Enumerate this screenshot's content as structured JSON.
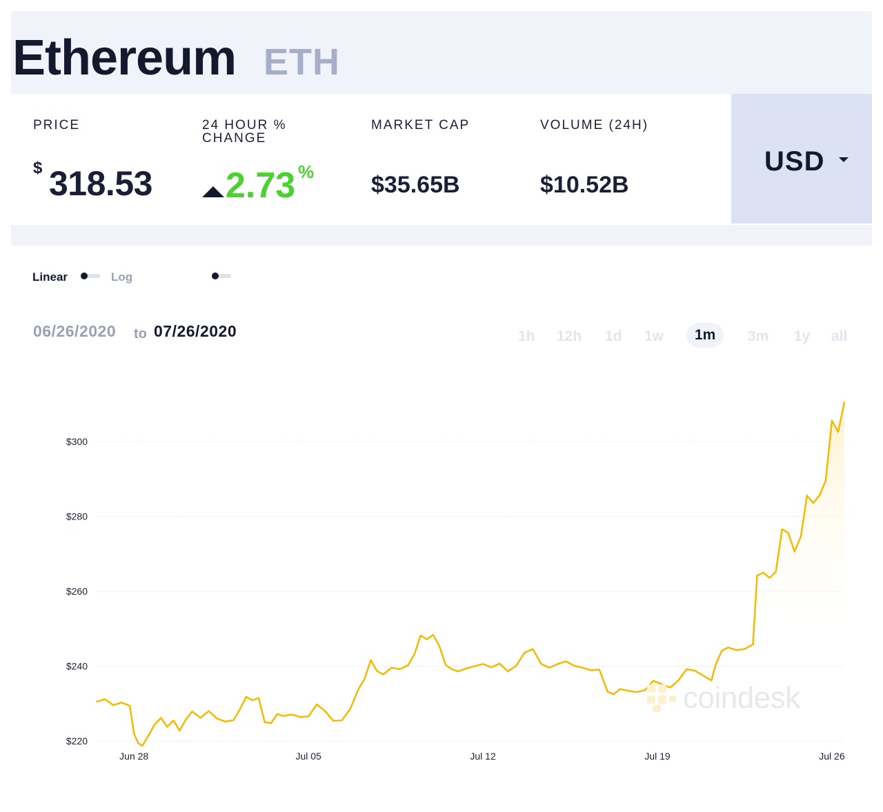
{
  "header": {
    "coin_name": "Ethereum",
    "coin_symbol": "ETH"
  },
  "stats": {
    "price": {
      "label": "PRICE",
      "currency_symbol": "$",
      "value": "318.53"
    },
    "change": {
      "label_line1": "24 HOUR %",
      "label_line2": "CHANGE",
      "value": "2.73",
      "unit": "%",
      "direction": "up",
      "color": "#4cd132"
    },
    "market_cap": {
      "label": "MARKET CAP",
      "value": "$35.65B"
    },
    "volume": {
      "label": "VOLUME (24H)",
      "value": "$10.52B"
    }
  },
  "currency": {
    "selected": "USD",
    "icon": "caret-down-icon"
  },
  "scale_toggle": {
    "linear_label": "Linear",
    "log_label": "Log"
  },
  "date_range": {
    "from": "06/26/2020",
    "to_word": "to",
    "to": "07/26/2020"
  },
  "range_tabs": [
    {
      "label": "1h",
      "active": false
    },
    {
      "label": "12h",
      "active": false
    },
    {
      "label": "1d",
      "active": false
    },
    {
      "label": "1w",
      "active": false
    },
    {
      "label": "1m",
      "active": true
    },
    {
      "label": "3m",
      "active": false
    },
    {
      "label": "1y",
      "active": false
    },
    {
      "label": "all",
      "active": false
    }
  ],
  "watermark": "coindesk",
  "chart_data": {
    "type": "area",
    "title": "",
    "xlabel": "",
    "ylabel": "",
    "x_type": "date",
    "y_ticks": [
      220,
      240,
      260,
      280,
      300
    ],
    "y_tick_labels": [
      "$220",
      "$240",
      "$260",
      "$280",
      "$300"
    ],
    "x_ticks": [
      "2020-06-28",
      "2020-07-05",
      "2020-07-12",
      "2020-07-19",
      "2020-07-26"
    ],
    "x_tick_labels": [
      "Jun 28",
      "Jul 05",
      "Jul 12",
      "Jul 19",
      "Jul 26"
    ],
    "xlim": [
      "2020-06-26T12:00",
      "2020-07-26T12:00"
    ],
    "ylim": [
      218,
      312
    ],
    "grid": true,
    "colors": {
      "line": "#f5b900",
      "fill_top": "#fff0c4",
      "grid": "#e3e6ee"
    },
    "series": [
      {
        "points": [
          [
            "2020-06-26T12:00",
            230.5
          ],
          [
            "2020-06-26T20:00",
            231.2
          ],
          [
            "2020-06-27T04:00",
            229.6
          ],
          [
            "2020-06-27T12:00",
            230.3
          ],
          [
            "2020-06-27T20:00",
            229.4
          ],
          [
            "2020-06-28T00:00",
            222.0
          ],
          [
            "2020-06-28T04:00",
            219.5
          ],
          [
            "2020-06-28T08:00",
            218.7
          ],
          [
            "2020-06-28T14:00",
            221.5
          ],
          [
            "2020-06-28T20:00",
            224.5
          ],
          [
            "2020-06-29T02:00",
            226.2
          ],
          [
            "2020-06-29T08:00",
            223.8
          ],
          [
            "2020-06-29T14:00",
            225.5
          ],
          [
            "2020-06-29T20:00",
            222.8
          ],
          [
            "2020-06-30T02:00",
            225.8
          ],
          [
            "2020-06-30T08:00",
            227.9
          ],
          [
            "2020-06-30T16:00",
            226.2
          ],
          [
            "2020-07-01T00:00",
            228.0
          ],
          [
            "2020-07-01T08:00",
            226.0
          ],
          [
            "2020-07-01T16:00",
            225.2
          ],
          [
            "2020-07-02T00:00",
            225.6
          ],
          [
            "2020-07-02T06:00",
            228.5
          ],
          [
            "2020-07-02T12:00",
            231.8
          ],
          [
            "2020-07-02T18:00",
            230.9
          ],
          [
            "2020-07-03T00:00",
            231.5
          ],
          [
            "2020-07-03T06:00",
            225.0
          ],
          [
            "2020-07-03T12:00",
            224.8
          ],
          [
            "2020-07-03T18:00",
            227.2
          ],
          [
            "2020-07-04T00:00",
            226.7
          ],
          [
            "2020-07-04T08:00",
            227.1
          ],
          [
            "2020-07-04T16:00",
            226.4
          ],
          [
            "2020-07-05T00:00",
            226.6
          ],
          [
            "2020-07-05T08:00",
            229.8
          ],
          [
            "2020-07-05T16:00",
            228.0
          ],
          [
            "2020-07-06T00:00",
            225.4
          ],
          [
            "2020-07-06T08:00",
            225.5
          ],
          [
            "2020-07-06T16:00",
            228.5
          ],
          [
            "2020-07-07T00:00",
            233.8
          ],
          [
            "2020-07-07T06:00",
            236.6
          ],
          [
            "2020-07-07T12:00",
            241.6
          ],
          [
            "2020-07-07T18:00",
            238.7
          ],
          [
            "2020-07-08T00:00",
            237.8
          ],
          [
            "2020-07-08T08:00",
            239.6
          ],
          [
            "2020-07-08T16:00",
            239.2
          ],
          [
            "2020-07-09T00:00",
            240.3
          ],
          [
            "2020-07-09T06:00",
            243.2
          ],
          [
            "2020-07-09T12:00",
            248.2
          ],
          [
            "2020-07-09T18:00",
            247.2
          ],
          [
            "2020-07-10T00:00",
            248.4
          ],
          [
            "2020-07-10T06:00",
            245.4
          ],
          [
            "2020-07-10T12:00",
            240.4
          ],
          [
            "2020-07-10T18:00",
            239.2
          ],
          [
            "2020-07-11T00:00",
            238.6
          ],
          [
            "2020-07-11T08:00",
            239.4
          ],
          [
            "2020-07-11T16:00",
            240.0
          ],
          [
            "2020-07-12T00:00",
            240.6
          ],
          [
            "2020-07-12T08:00",
            239.7
          ],
          [
            "2020-07-12T16:00",
            240.7
          ],
          [
            "2020-07-13T00:00",
            238.6
          ],
          [
            "2020-07-13T08:00",
            240.1
          ],
          [
            "2020-07-13T16:00",
            243.6
          ],
          [
            "2020-07-14T00:00",
            244.6
          ],
          [
            "2020-07-14T08:00",
            240.6
          ],
          [
            "2020-07-14T16:00",
            239.6
          ],
          [
            "2020-07-15T00:00",
            240.6
          ],
          [
            "2020-07-15T08:00",
            241.3
          ],
          [
            "2020-07-15T16:00",
            240.1
          ],
          [
            "2020-07-16T00:00",
            239.6
          ],
          [
            "2020-07-16T08:00",
            238.9
          ],
          [
            "2020-07-16T16:00",
            239.1
          ],
          [
            "2020-07-17T00:00",
            233.2
          ],
          [
            "2020-07-17T06:00",
            232.5
          ],
          [
            "2020-07-17T12:00",
            233.9
          ],
          [
            "2020-07-17T20:00",
            233.4
          ],
          [
            "2020-07-18T04:00",
            233.1
          ],
          [
            "2020-07-18T12:00",
            233.6
          ],
          [
            "2020-07-18T20:00",
            236.1
          ],
          [
            "2020-07-19T04:00",
            235.2
          ],
          [
            "2020-07-19T12:00",
            234.3
          ],
          [
            "2020-07-19T20:00",
            236.1
          ],
          [
            "2020-07-20T04:00",
            239.2
          ],
          [
            "2020-07-20T12:00",
            238.8
          ],
          [
            "2020-07-20T20:00",
            237.5
          ],
          [
            "2020-07-21T04:00",
            236.2
          ],
          [
            "2020-07-21T08:00",
            240.4
          ],
          [
            "2020-07-21T14:00",
            244.1
          ],
          [
            "2020-07-21T20:00",
            245.0
          ],
          [
            "2020-07-22T04:00",
            244.3
          ],
          [
            "2020-07-22T12:00",
            244.6
          ],
          [
            "2020-07-22T20:00",
            245.8
          ],
          [
            "2020-07-23T00:00",
            264.2
          ],
          [
            "2020-07-23T06:00",
            265.0
          ],
          [
            "2020-07-23T12:00",
            263.6
          ],
          [
            "2020-07-23T18:00",
            265.2
          ],
          [
            "2020-07-24T00:00",
            276.6
          ],
          [
            "2020-07-24T06:00",
            275.6
          ],
          [
            "2020-07-24T12:00",
            270.6
          ],
          [
            "2020-07-24T18:00",
            274.6
          ],
          [
            "2020-07-25T00:00",
            285.6
          ],
          [
            "2020-07-25T06:00",
            283.6
          ],
          [
            "2020-07-25T12:00",
            285.6
          ],
          [
            "2020-07-25T18:00",
            289.6
          ],
          [
            "2020-07-26T00:00",
            305.6
          ],
          [
            "2020-07-26T06:00",
            302.6
          ],
          [
            "2020-07-26T12:00",
            310.6
          ]
        ]
      }
    ]
  }
}
